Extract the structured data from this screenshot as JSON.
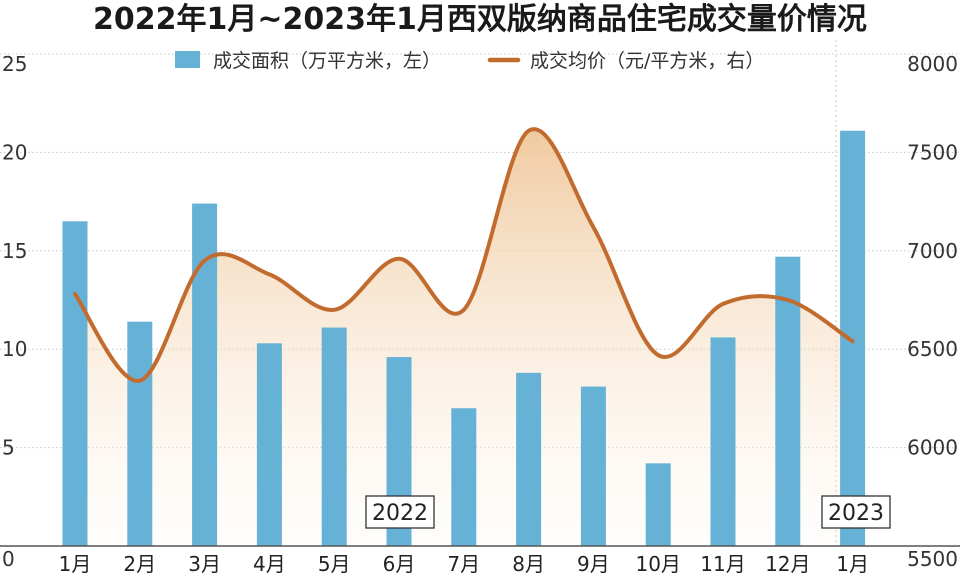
{
  "title": "2022年1月~2023年1月西双版纳商品住宅成交量价情况",
  "colors": {
    "bar": "#66b2d6",
    "line": "#c26b2f",
    "area_top": "#efc79a",
    "grid": "#c7c7c7",
    "axis": "#555555"
  },
  "year_labels": [
    "2022",
    "2023"
  ],
  "chart_data": {
    "type": "bar",
    "categories": [
      "1月",
      "2月",
      "3月",
      "4月",
      "5月",
      "6月",
      "7月",
      "8月",
      "9月",
      "10月",
      "11月",
      "12月",
      "1月"
    ],
    "series": [
      {
        "name": "成交面积（万平方米，左）",
        "type": "bar",
        "axis": "left",
        "values": [
          16.5,
          11.4,
          17.4,
          10.3,
          11.1,
          9.6,
          7.0,
          8.8,
          8.1,
          4.2,
          10.6,
          14.7,
          21.1
        ]
      },
      {
        "name": "成交均价（元/平方米，右）",
        "type": "area-line",
        "axis": "right",
        "values": [
          6780,
          6340,
          6950,
          6880,
          6700,
          6960,
          6700,
          7610,
          7120,
          6470,
          6730,
          6750,
          6540
        ]
      }
    ],
    "y_left": {
      "min": 0,
      "max": 25,
      "ticks": [
        "0",
        "5",
        "10",
        "15",
        "20",
        "25"
      ]
    },
    "y_right": {
      "min": 5500,
      "max": 8000,
      "ticks": [
        "5500",
        "6000",
        "6500",
        "7000",
        "7500",
        "8000"
      ]
    },
    "grid": "horizontal dotted",
    "legend_position": "top"
  }
}
